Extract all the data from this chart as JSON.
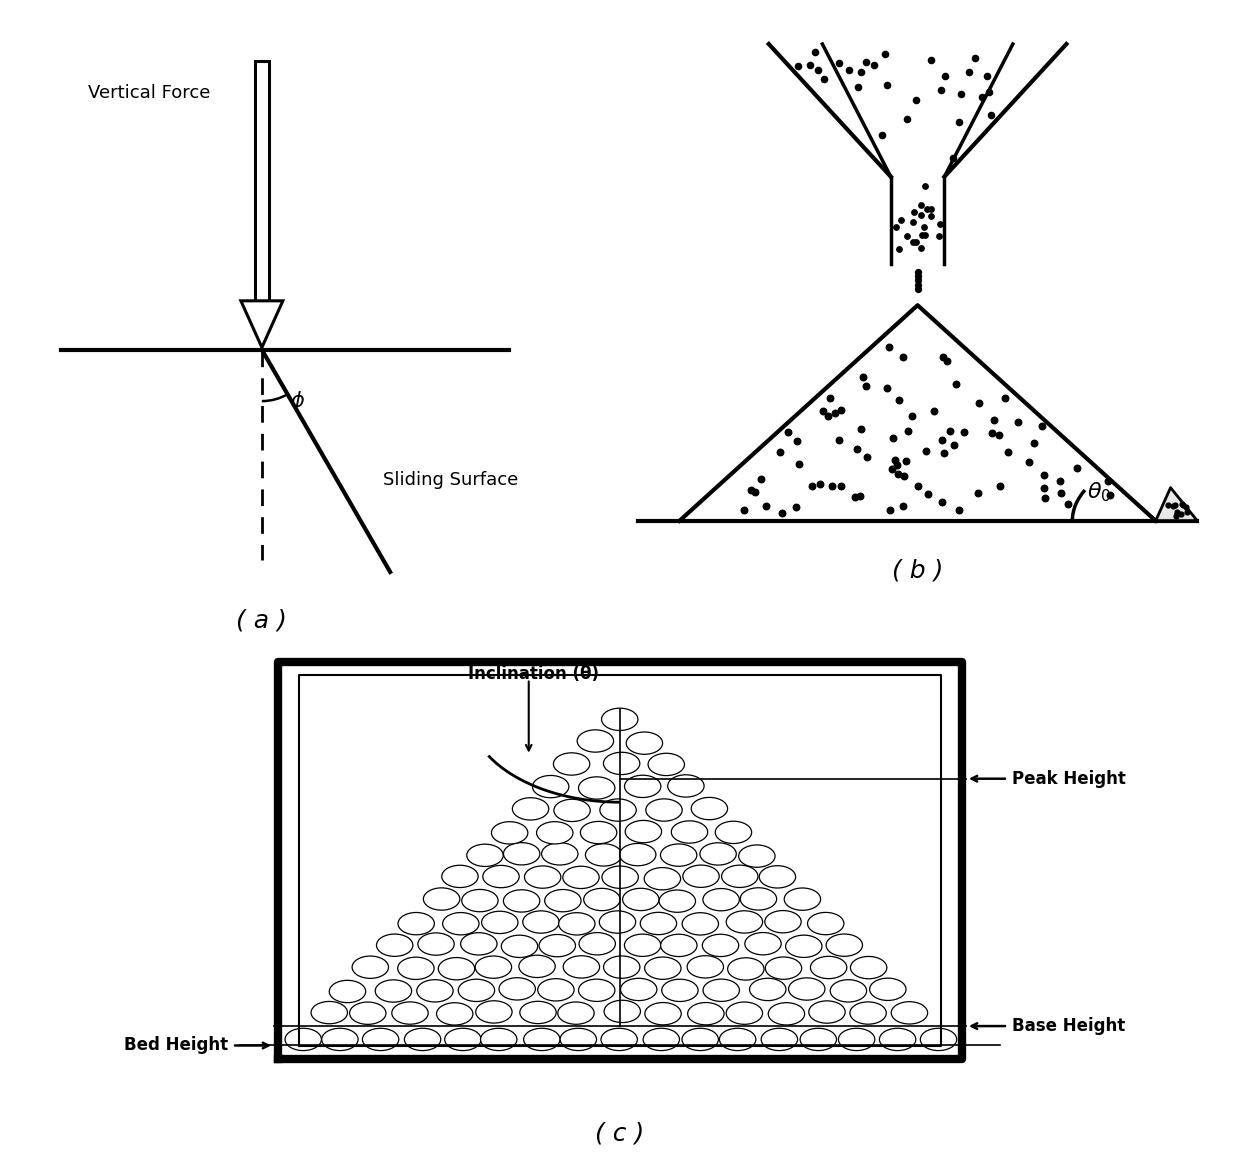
{
  "bg_color": "#ffffff",
  "label_a": "( a )",
  "label_b": "( b )",
  "label_c": "( c )",
  "text_vertical_force": "Vertical Force",
  "text_sliding_surface": "Sliding Surface",
  "text_phi": "ϕ",
  "text_theta0": "θ₀",
  "text_inclination": "Inclination (θ)",
  "text_peak_height": "Peak Height",
  "text_base_height": "Base Height",
  "text_bed_height": "Bed Height",
  "phi_deg": 30
}
